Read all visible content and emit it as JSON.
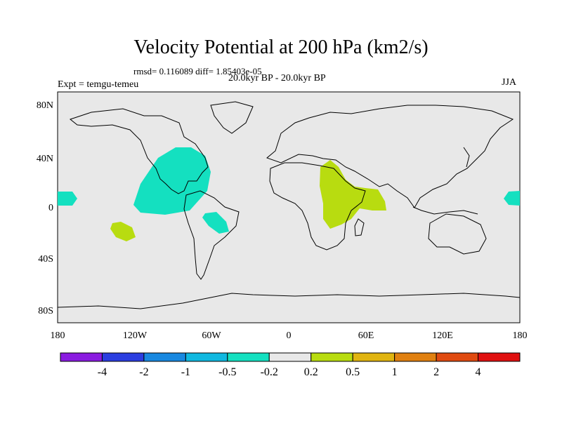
{
  "title": "Velocity Potential at 200 hPa (km2/s)",
  "stats": "rmsd= 0.116089 diff= 1.85403e-05",
  "experiment": "Expt = temgu-temeu",
  "period": "20.0kyr BP - 20.0kyr BP",
  "season": "JJA",
  "lat_labels": [
    "80N",
    "40N",
    "0",
    "40S",
    "80S"
  ],
  "lon_labels": [
    "180",
    "120W",
    "60W",
    "0",
    "60E",
    "120E",
    "180"
  ],
  "colorbar": {
    "labels": [
      "-4",
      "-2",
      "-1",
      "-0.5",
      "-0.2",
      "0.2",
      "0.5",
      "1",
      "2",
      "4"
    ],
    "colors": [
      "#8a1be0",
      "#2b3ee0",
      "#1888e0",
      "#10b8e0",
      "#14e0c0",
      "#e8e8e8",
      "#b8dc10",
      "#e0b410",
      "#e08010",
      "#e04a10",
      "#e01010"
    ]
  },
  "colors": {
    "land_ocean": "#e8e8e8",
    "negative_region": "#14e0c0",
    "positive_region": "#b8dc10"
  }
}
